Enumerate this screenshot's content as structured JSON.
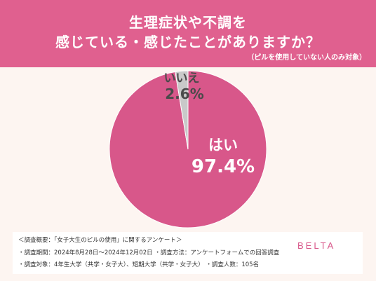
{
  "header": {
    "title_line1": "生理症状や不調を",
    "title_line2": "感じている・感じたことがありますか？",
    "subtitle": "（ピルを使用していない人のみ対象）"
  },
  "chart_data": {
    "type": "pie",
    "title": "生理症状や不調を感じている・感じたことがありますか？",
    "subtitle": "（ピルを使用していない人のみ対象）",
    "slices": [
      {
        "label": "はい",
        "value": 97.4,
        "value_label": "97.4%",
        "color": "#d8578a"
      },
      {
        "label": "いいえ",
        "value": 2.6,
        "value_label": "2.6%",
        "color": "#c9c9c9"
      }
    ]
  },
  "footer": {
    "note1": "＜調査概要：「女子大生のピルの使用」に関するアンケート＞",
    "note2": "・調査期間：2024年8月28日～2024年12月02日 ・調査方法：アンケートフォームでの回答調査",
    "note3": "・調査対象：4年生大学（共学・女子大）、短期大学（共学・女子大） ・調査人数：105名",
    "brand": "BELTA"
  }
}
